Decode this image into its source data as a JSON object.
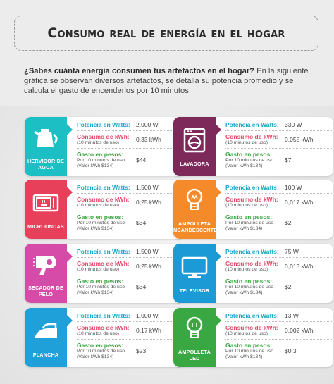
{
  "title": "Consumo real de energía en el hogar",
  "intro": {
    "question": "¿Sabes cuánta energía consumen tus artefactos en el hogar?",
    "text": " En la siguiente gráfica se observan diversos artefactos, se detalla su potencia promedio y se calcula el gasto de encenderlos por 10 minutos."
  },
  "labels": {
    "power": "Potencia en Watts:",
    "consumption": "Consumo de kWh:",
    "consumption_sub": "(10 minutos de uso)",
    "cost": "Gasto en pesos:",
    "cost_sub1": "Por 10 minutos de uso",
    "cost_sub2": "(Valor kWh $134)"
  },
  "appliances": [
    {
      "name": "Hervidor de agua",
      "icon": "kettle-icon",
      "color": "#1bbfc4",
      "power": "2.000 W",
      "kwh": "0,33 kWh",
      "cost": "$44"
    },
    {
      "name": "Lavadora",
      "icon": "washing-machine-icon",
      "color": "#7d2a5b",
      "power": "330 W",
      "kwh": "0,055 kWh",
      "cost": "$7"
    },
    {
      "name": "Microondas",
      "icon": "microwave-icon",
      "color": "#e6405a",
      "power": "1.500 W",
      "kwh": "0,25 kWh",
      "cost": "$34"
    },
    {
      "name": "Ampolleta incandescente",
      "icon": "light-bulb-icon",
      "color": "#f58a2a",
      "power": "100 W",
      "kwh": "0,017 kWh",
      "cost": "$2"
    },
    {
      "name": "Secador de pelo",
      "icon": "hair-dryer-icon",
      "color": "#d64aa8",
      "power": "1.500 W",
      "kwh": "0,25 kWh",
      "cost": "$34"
    },
    {
      "name": "Televisor",
      "icon": "television-icon",
      "color": "#1c9ad6",
      "power": "75 W",
      "kwh": "0,013 kWh",
      "cost": "$2"
    },
    {
      "name": "Plancha",
      "icon": "iron-icon",
      "color": "#1fa0d8",
      "power": "1.000 W",
      "kwh": "0,17 kWh",
      "cost": "$23"
    },
    {
      "name": "Ampolleta LED",
      "icon": "led-bulb-icon",
      "color": "#3aa842",
      "power": "13 W",
      "kwh": "0,002 kWh",
      "cost": "$0,3"
    }
  ],
  "colors": {
    "power_label": "#1aa6c8",
    "consumption_label": "#e64a6a",
    "cost_label": "#3aa842"
  }
}
